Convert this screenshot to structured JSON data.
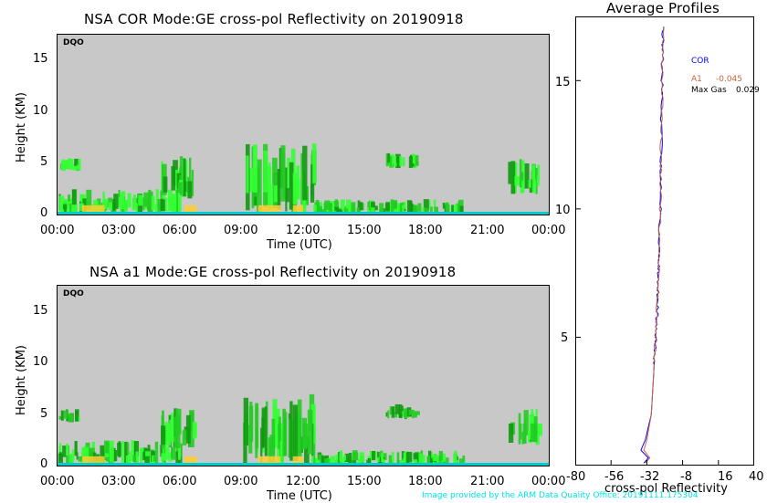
{
  "panels": [
    {
      "title": "NSA COR  Mode:GE  cross-pol Reflectivity on 20190918",
      "badge": "DQO",
      "ylabel": "Height (KM)",
      "xlabel": "Time (UTC)",
      "yticks": [
        "0",
        "5",
        "10",
        "15"
      ],
      "xticks": [
        "00:00",
        "03:00",
        "06:00",
        "09:00",
        "12:00",
        "15:00",
        "18:00",
        "21:00",
        "00:00"
      ]
    },
    {
      "title": "NSA a1  Mode:GE  cross-pol Reflectivity on 20190918",
      "badge": "DQO",
      "ylabel": "Height (KM)",
      "xlabel": "Time (UTC)",
      "yticks": [
        "0",
        "5",
        "10",
        "15"
      ],
      "xticks": [
        "00:00",
        "03:00",
        "06:00",
        "09:00",
        "12:00",
        "15:00",
        "18:00",
        "21:00",
        "00:00"
      ]
    }
  ],
  "profile": {
    "title": "Average Profiles",
    "xlabel": "cross-pol Reflectivity",
    "xticks": [
      "-80",
      "-56",
      "-32",
      "-8",
      "16",
      "40"
    ],
    "yticks": [
      "5",
      "10",
      "15"
    ],
    "legend": {
      "cor": "COR",
      "a1_label": "A1",
      "a1_value": "-0.045",
      "maxgas_label": "Max Gas",
      "maxgas_value": "0.029"
    }
  },
  "colors": {
    "background_plot": "#c8c8c8",
    "cor_line": "#0000ff",
    "a1_line": "#c8643c",
    "echo_light": "#33ff33",
    "echo_mid": "#22cc22",
    "echo_dark": "#119911",
    "echo_strong": "#ffcc33",
    "surface": "#00cccc",
    "credit": "#00e5e5"
  },
  "credit": "Image provided by the ARM Data Quality Office: 20191111.175304",
  "chart_data": [
    {
      "type": "heatmap",
      "title": "NSA COR  Mode:GE  cross-pol Reflectivity on 20190918",
      "xlabel": "Time (UTC)",
      "ylabel": "Height (KM)",
      "xlim": [
        "00:00",
        "24:00"
      ],
      "ylim": [
        0,
        17.5
      ],
      "echo_regions": [
        {
          "t0": 0.0,
          "t1": 1.0,
          "h0": 4.2,
          "h1": 5.5
        },
        {
          "t0": 0.0,
          "t1": 6.0,
          "h0": 0.0,
          "h1": 2.5
        },
        {
          "t0": 5.0,
          "t1": 6.8,
          "h0": 1.5,
          "h1": 5.8
        },
        {
          "t0": 9.0,
          "t1": 12.5,
          "h0": 0.0,
          "h1": 7.0
        },
        {
          "t0": 12.5,
          "t1": 19.8,
          "h0": 0.0,
          "h1": 1.5
        },
        {
          "t0": 16.0,
          "t1": 17.5,
          "h0": 4.5,
          "h1": 6.0
        },
        {
          "t0": 22.0,
          "t1": 23.5,
          "h0": 2.0,
          "h1": 5.5
        }
      ]
    },
    {
      "type": "heatmap",
      "title": "NSA a1  Mode:GE  cross-pol Reflectivity on 20190918",
      "xlabel": "Time (UTC)",
      "ylabel": "Height (KM)",
      "xlim": [
        "00:00",
        "24:00"
      ],
      "ylim": [
        0,
        17.5
      ],
      "echo_regions": [
        {
          "t0": 0.0,
          "t1": 1.0,
          "h0": 4.2,
          "h1": 5.5
        },
        {
          "t0": 0.0,
          "t1": 6.0,
          "h0": 0.0,
          "h1": 2.5
        },
        {
          "t0": 5.0,
          "t1": 6.8,
          "h0": 1.5,
          "h1": 5.8
        },
        {
          "t0": 9.0,
          "t1": 12.5,
          "h0": 0.0,
          "h1": 7.0
        },
        {
          "t0": 12.5,
          "t1": 19.8,
          "h0": 0.0,
          "h1": 1.5
        },
        {
          "t0": 16.0,
          "t1": 17.5,
          "h0": 4.5,
          "h1": 6.0
        },
        {
          "t0": 22.0,
          "t1": 23.5,
          "h0": 2.0,
          "h1": 5.5
        }
      ]
    },
    {
      "type": "line",
      "title": "Average Profiles",
      "xlabel": "cross-pol Reflectivity",
      "xlim": [
        -80,
        40
      ],
      "ylim": [
        0,
        17.5
      ],
      "series": [
        {
          "name": "COR",
          "x": [
            -34,
            -31,
            -36,
            -33,
            -29,
            -28,
            -27,
            -26,
            -25,
            -24.5,
            -24,
            -23,
            -22.5,
            -22,
            -21.5,
            -21
          ],
          "y": [
            0.1,
            0.3,
            0.6,
            1.0,
            2.0,
            3.0,
            4.0,
            5.0,
            6.0,
            7.0,
            8.0,
            10.0,
            12.0,
            14.0,
            16.0,
            17.2
          ]
        },
        {
          "name": "A1",
          "x": [
            -33,
            -30,
            -34,
            -32,
            -29,
            -28,
            -27,
            -26,
            -25,
            -24.5,
            -24,
            -23,
            -22.5,
            -22,
            -21.5,
            -21
          ],
          "y": [
            0.1,
            0.3,
            0.6,
            1.0,
            2.0,
            3.0,
            4.0,
            5.0,
            6.0,
            7.0,
            8.0,
            10.0,
            12.0,
            14.0,
            16.0,
            17.2
          ]
        }
      ]
    }
  ]
}
